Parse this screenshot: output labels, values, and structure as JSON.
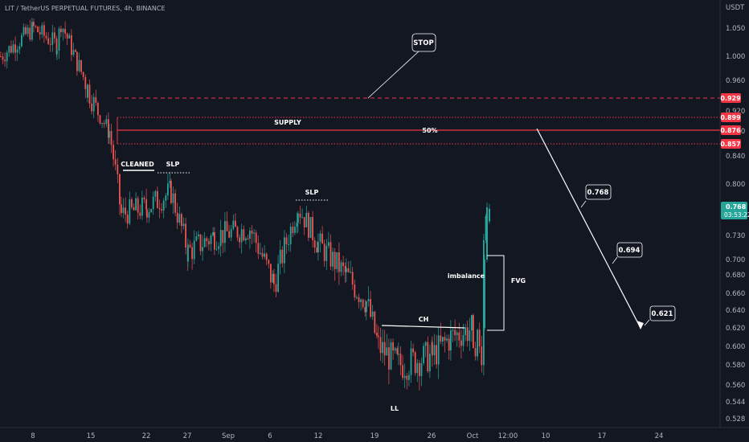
{
  "header": {
    "symbol_line": "LIT / TetherUS PERPETUAL FUTURES, 4h, BINANCE"
  },
  "axis": {
    "currency": "USDT",
    "y_ticks": [
      "1.050",
      "1.000",
      "0.960",
      "0.920",
      "0.880",
      "0.840",
      "0.800",
      "0.770",
      "0.730",
      "0.700",
      "0.680",
      "0.660",
      "0.640",
      "0.620",
      "0.600",
      "0.580",
      "0.560",
      "0.544",
      "0.528"
    ],
    "x_ticks": [
      "8",
      "15",
      "22",
      "27",
      "Sep",
      "6",
      "12",
      "19",
      "26",
      "Oct",
      "12:00",
      "10",
      "17",
      "24"
    ]
  },
  "price_tags": {
    "stop": "0.929",
    "supply_top": "0.899",
    "mid": "0.876",
    "supply_bottom": "0.857",
    "current_price": "0.768",
    "countdown": "03:53:22"
  },
  "annotations": {
    "stop": "STOP",
    "supply": "SUPPLY",
    "fifty": "50%",
    "cleaned": "CLEANED",
    "slp1": "SLP",
    "slp2": "SLP",
    "ch": "CH",
    "ll": "LL",
    "imbalance": "imbalance",
    "fvg": "FVG",
    "target1": "0.768",
    "target2": "0.694",
    "target3": "0.621"
  },
  "colors": {
    "background": "#131722",
    "up": "#26a69a",
    "down": "#ef5350",
    "level_red": "#f23645",
    "text": "#b2b5be",
    "annotation": "#ffffff"
  },
  "chart_data": {
    "type": "candlestick",
    "title": "LIT / TetherUS PERPETUAL FUTURES, 4h, BINANCE",
    "ylim": [
      0.52,
      1.08
    ],
    "levels": [
      {
        "name": "STOP",
        "value": 0.929,
        "style": "dashed"
      },
      {
        "name": "SUPPLY top",
        "value": 0.899,
        "style": "dotted"
      },
      {
        "name": "50%",
        "value": 0.876,
        "style": "solid"
      },
      {
        "name": "SUPPLY bottom",
        "value": 0.857,
        "style": "dotted"
      }
    ],
    "current_price": 0.768,
    "projected_targets": [
      0.768,
      0.694,
      0.621
    ],
    "close_path": [
      {
        "date": "Aug 3",
        "close": 1.0
      },
      {
        "date": "Aug 8",
        "close": 1.05
      },
      {
        "date": "Aug 10",
        "close": 1.02
      },
      {
        "date": "Aug 12",
        "close": 1.06
      },
      {
        "date": "Aug 14",
        "close": 0.99
      },
      {
        "date": "Aug 16",
        "close": 0.95
      },
      {
        "date": "Aug 18",
        "close": 0.88
      },
      {
        "date": "Aug 19",
        "close": 0.76
      },
      {
        "date": "Aug 22",
        "close": 0.77
      },
      {
        "date": "Aug 24",
        "close": 0.79
      },
      {
        "date": "Aug 27",
        "close": 0.71
      },
      {
        "date": "Aug 31",
        "close": 0.73
      },
      {
        "date": "Sep 4",
        "close": 0.74
      },
      {
        "date": "Sep 6",
        "close": 0.67
      },
      {
        "date": "Sep 9",
        "close": 0.77
      },
      {
        "date": "Sep 12",
        "close": 0.72
      },
      {
        "date": "Sep 15",
        "close": 0.68
      },
      {
        "date": "Sep 18",
        "close": 0.65
      },
      {
        "date": "Sep 20",
        "close": 0.6
      },
      {
        "date": "Sep 23",
        "close": 0.58
      },
      {
        "date": "Sep 26",
        "close": 0.59
      },
      {
        "date": "Sep 28",
        "close": 0.61
      },
      {
        "date": "Oct 1",
        "close": 0.62
      },
      {
        "date": "Oct 2",
        "close": 0.768
      }
    ]
  }
}
